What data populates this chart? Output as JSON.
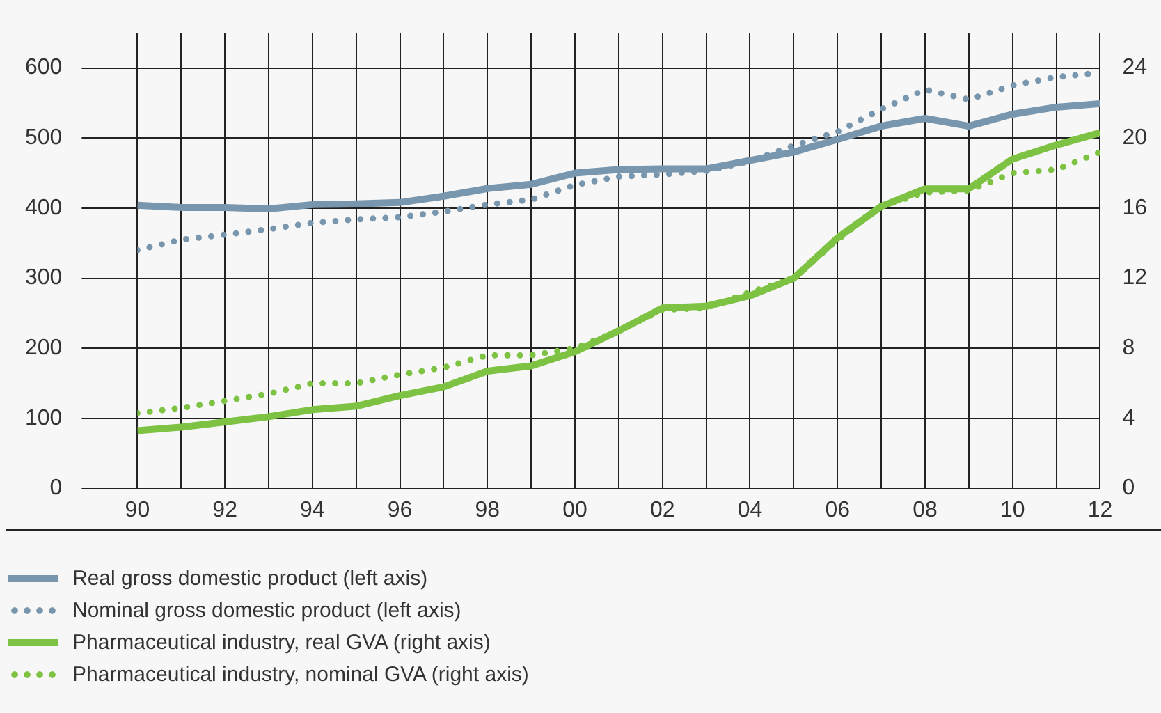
{
  "chart_data": {
    "type": "line",
    "x": [
      1990,
      1991,
      1992,
      1993,
      1994,
      1995,
      1996,
      1997,
      1998,
      1999,
      2000,
      2001,
      2002,
      2003,
      2004,
      2005,
      2006,
      2007,
      2008,
      2009,
      2010,
      2011,
      2012
    ],
    "series": [
      {
        "name": "Real gross domestic product (left axis)",
        "color": "#7896ad",
        "line_style": "solid",
        "values": [
          404,
          401,
          401,
          399,
          405,
          406,
          408,
          417,
          428,
          434,
          450,
          455,
          456,
          456,
          468,
          480,
          498,
          517,
          528,
          517,
          534,
          544,
          549
        ]
      },
      {
        "name": "Nominal gross domestic product (left axis)",
        "color": "#7896ad",
        "line_style": "dotted",
        "values": [
          340,
          355,
          362,
          370,
          379,
          384,
          387,
          395,
          405,
          412,
          433,
          445,
          448,
          453,
          467,
          489,
          509,
          541,
          569,
          555,
          575,
          587,
          593
        ]
      },
      {
        "name": "Pharmaceutical industry, real GVA (right axis)",
        "color": "#7dc242",
        "line_style": "solid",
        "axis": "y2",
        "values": [
          3.3,
          3.5,
          3.8,
          4.1,
          4.5,
          4.7,
          5.3,
          5.8,
          6.7,
          7.0,
          7.8,
          9.0,
          10.3,
          10.4,
          11.0,
          12.0,
          14.3,
          16.1,
          17.1,
          17.1,
          18.8,
          19.6,
          20.3
        ]
      },
      {
        "name": "Pharmaceutical industry, nominal GVA (right axis)",
        "color": "#7dc242",
        "line_style": "dotted",
        "axis": "y2",
        "values": [
          4.3,
          4.6,
          5.0,
          5.4,
          6.0,
          6.0,
          6.5,
          6.9,
          7.6,
          7.6,
          8.0,
          9.0,
          10.2,
          10.3,
          11.2,
          12.0,
          14.2,
          16.1,
          16.9,
          17.0,
          18.0,
          18.2,
          19.2
        ]
      }
    ],
    "xlim": [
      1990,
      2012
    ],
    "xticks": [
      {
        "value": 1990,
        "label": "90"
      },
      {
        "value": 1991,
        "label": null
      },
      {
        "value": 1992,
        "label": "92"
      },
      {
        "value": 1993,
        "label": null
      },
      {
        "value": 1994,
        "label": "94"
      },
      {
        "value": 1995,
        "label": null
      },
      {
        "value": 1996,
        "label": "96"
      },
      {
        "value": 1997,
        "label": null
      },
      {
        "value": 1998,
        "label": "98"
      },
      {
        "value": 1999,
        "label": null
      },
      {
        "value": 2000,
        "label": "00"
      },
      {
        "value": 2001,
        "label": null
      },
      {
        "value": 2002,
        "label": "02"
      },
      {
        "value": 2003,
        "label": null
      },
      {
        "value": 2004,
        "label": "04"
      },
      {
        "value": 2005,
        "label": null
      },
      {
        "value": 2006,
        "label": "06"
      },
      {
        "value": 2007,
        "label": null
      },
      {
        "value": 2008,
        "label": "08"
      },
      {
        "value": 2009,
        "label": null
      },
      {
        "value": 2010,
        "label": "10"
      },
      {
        "value": 2011,
        "label": null
      },
      {
        "value": 2012,
        "label": "12"
      }
    ],
    "ylim": [
      0,
      650
    ],
    "yticks": [
      0,
      100,
      200,
      300,
      400,
      500,
      600
    ],
    "y2lim": [
      0,
      26
    ],
    "y2ticks": [
      0,
      4,
      8,
      12,
      16,
      20,
      24
    ],
    "grid": true,
    "legend": "bottom",
    "marker": "none"
  }
}
